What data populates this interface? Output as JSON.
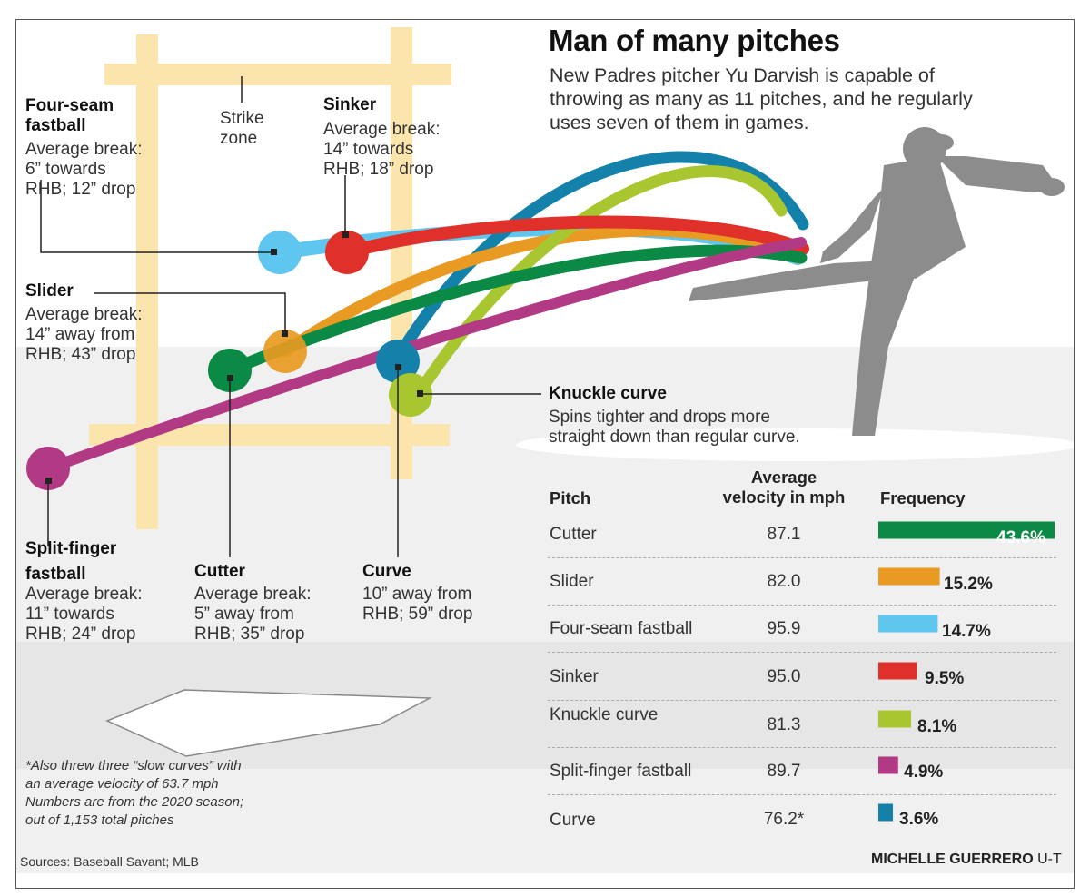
{
  "header": {
    "title": "Man of many pitches",
    "intro": "New Padres pitcher Yu Darvish is capable of\nthrowing as many as 11 pitches, and he regularly\nuses seven of them in games."
  },
  "strike_zone_label": "Strike\nzone",
  "pitch_callouts": [
    {
      "name": "Four-seam\nfastball",
      "desc": "Average break:\n6” towards\nRHB; 12” drop",
      "color": "#5fc6ef"
    },
    {
      "name": "Sinker",
      "desc": "Average break:\n14” towards\nRHB; 18” drop",
      "color": "#e0302a"
    },
    {
      "name": "Slider",
      "desc": "Average break:\n14” away from\nRHB; 43” drop",
      "color": "#e89a22"
    },
    {
      "name": "Knuckle curve",
      "desc": "Spins tighter and drops more\nstraight down than regular curve.",
      "color": "#a8c62f"
    },
    {
      "name": "Split-finger\nfastball",
      "desc": "Average break:\n11” towards\nRHB; 24” drop",
      "color": "#b23a84"
    },
    {
      "name": "Cutter",
      "desc": "Average break:\n5” away from\nRHB; 35” drop",
      "color": "#0b8a45"
    },
    {
      "name": "Curve",
      "desc": "10” away from\nRHB; 59” drop",
      "color": "#1381a9"
    }
  ],
  "table": {
    "col_pitch": "Pitch",
    "col_velocity": "Average\nvelocity in mph",
    "col_frequency": "Frequency"
  },
  "chart_data": {
    "type": "bar",
    "title": "Man of many pitches",
    "categories": [
      "Cutter",
      "Slider",
      "Four-seam fastball",
      "Sinker",
      "Knuckle curve",
      "Split-finger fastball",
      "Curve"
    ],
    "series": [
      {
        "name": "Frequency",
        "values": [
          43.6,
          15.2,
          14.7,
          9.5,
          8.1,
          4.9,
          3.6
        ]
      }
    ],
    "velocity_labels": [
      "87.1",
      "82.0",
      "95.9",
      "95.0",
      "81.3",
      "89.7",
      "76.2*"
    ],
    "value_labels": [
      "43.6%",
      "15.2%",
      "14.7%",
      "9.5%",
      "8.1%",
      "4.9%",
      "3.6%"
    ],
    "colors": [
      "#0b8a45",
      "#e89a22",
      "#5fc6ef",
      "#e0302a",
      "#a8c62f",
      "#b23a84",
      "#1381a9"
    ],
    "xlim": [
      0,
      43.6
    ]
  },
  "footnote": "*Also threw three “slow curves” with\nan average velocity of 63.7 mph\nNumbers are from the 2020 season;\nout of 1,153 total pitches",
  "sources": "Sources: Baseball Savant; MLB",
  "credit": {
    "name": "MICHELLE GUERRERO",
    "org": "U-T"
  }
}
